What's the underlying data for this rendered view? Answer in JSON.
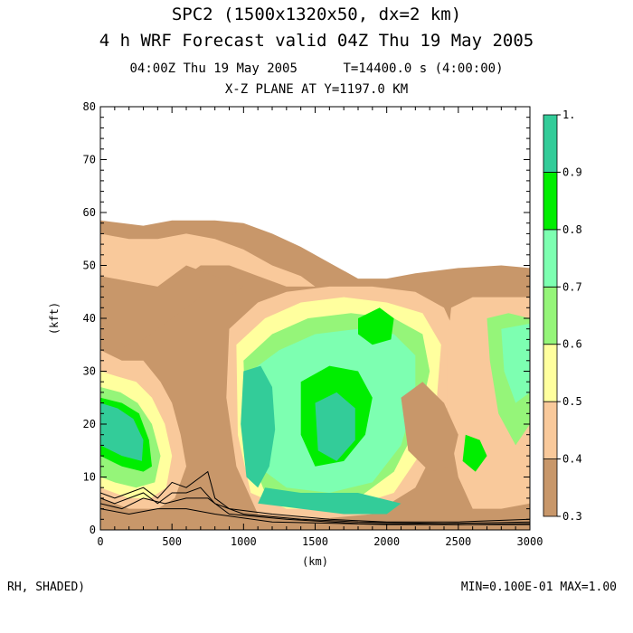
{
  "header": {
    "line1": "SPC2 (1500x1320x50, dx=2 km)",
    "line2": "4 h WRF Forecast valid 04Z Thu 19 May 2005",
    "line3": "04:00Z Thu 19 May 2005      T=14400.0 s (4:00:00)",
    "line4": "X-Z PLANE AT Y=1197.0 KM"
  },
  "footer": {
    "left": "RH, SHADED)",
    "right": "MIN=0.100E-01 MAX=1.00"
  },
  "colors": {
    "l03": "#c8976a",
    "l04": "#f9c99b",
    "l05": "#ffff9e",
    "l06": "#95f579",
    "l07": "#7dffb1",
    "l08": "#00ee00",
    "l09": "#33cc99",
    "line": "#000000"
  },
  "chart_data": {
    "type": "heatmap",
    "title": "X-Z PLANE AT Y=1197.0 KM",
    "xlabel": "(km)",
    "ylabel": "(kft)",
    "xlim": [
      0,
      3000
    ],
    "ylim": [
      0,
      80
    ],
    "x_ticks": [
      0,
      500,
      1000,
      1500,
      2000,
      2500,
      3000
    ],
    "y_ticks": [
      0,
      10,
      20,
      30,
      40,
      50,
      60,
      70,
      80
    ],
    "variable": "RH",
    "colorbar": {
      "levels": [
        "0.3",
        "0.4",
        "0.5",
        "0.6",
        "0.7",
        "0.8",
        "0.9",
        "1."
      ],
      "colors": [
        "#c8976a",
        "#f9c99b",
        "#ffff9e",
        "#95f579",
        "#7dffb1",
        "#00ee00",
        "#33cc99"
      ]
    },
    "moist_top_profile": {
      "x": [
        0,
        300,
        500,
        700,
        800,
        1000,
        1200,
        1400,
        1600,
        1800,
        2000,
        2200,
        2500,
        2800,
        3000
      ],
      "y": [
        58.5,
        57.5,
        58.5,
        58.5,
        58.5,
        58,
        56,
        53.5,
        50.5,
        47.5,
        47.5,
        48.5,
        49.5,
        50,
        49.5
      ]
    },
    "min": 0.01,
    "max": 1.0
  }
}
